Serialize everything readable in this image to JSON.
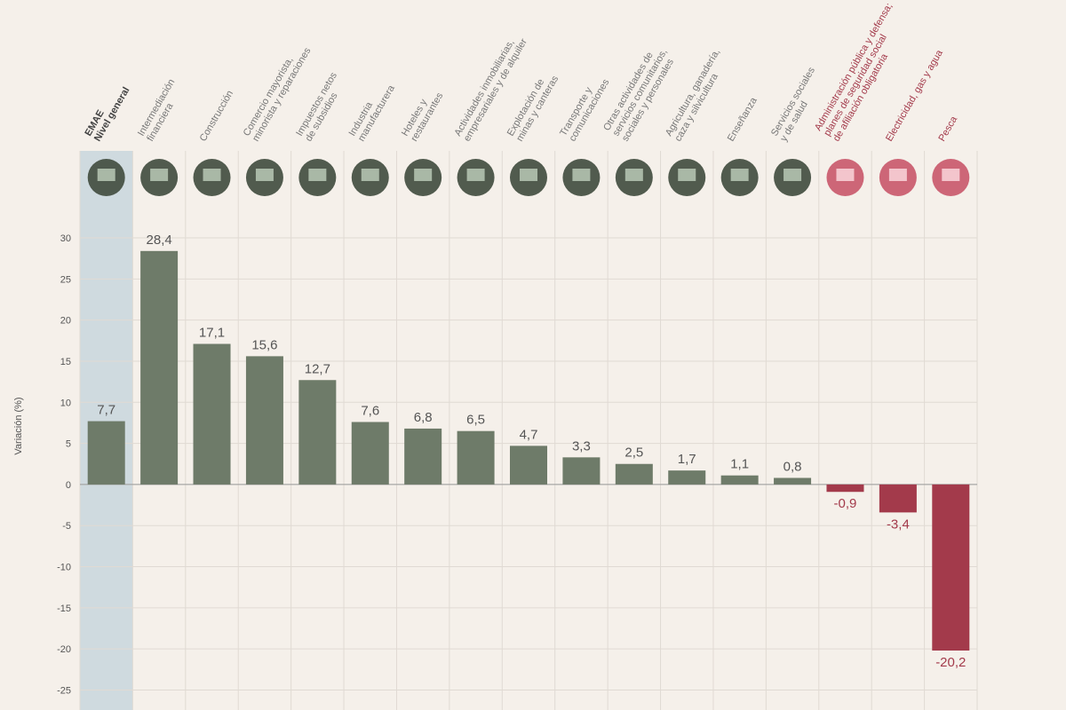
{
  "chart_data": {
    "type": "bar",
    "y_label": "Variación (%)",
    "categories": [
      [
        "EMAE",
        "Nivel general"
      ],
      [
        "Intermediación",
        "financiera"
      ],
      [
        "Construcción"
      ],
      [
        "Comercio mayorista,",
        "minorista y reparaciones"
      ],
      [
        "Impuestos netos",
        "de subsidios"
      ],
      [
        "Industria",
        "manufacturera"
      ],
      [
        "Hoteles y",
        "restaurantes"
      ],
      [
        "Actividades inmobiliarias,",
        "empresariales y de alquiler"
      ],
      [
        "Explotación de",
        "minas y canteras"
      ],
      [
        "Transporte y",
        "comunicaciones"
      ],
      [
        "Otras actividades de",
        "servicios comunitarios,",
        "sociales y personales"
      ],
      [
        "Agricultura, ganadería,",
        "caza y silvicultura"
      ],
      [
        "Enseñanza"
      ],
      [
        "Servicios sociales",
        "y de salud"
      ],
      [
        "Administración pública y defensa;",
        "planes de seguridad social",
        "de afiliación obligatoria"
      ],
      [
        "Electricidad, gas y agua"
      ],
      [
        "Pesca"
      ]
    ],
    "values": [
      7.7,
      28.4,
      17.1,
      15.6,
      12.7,
      7.6,
      6.8,
      6.5,
      4.7,
      3.3,
      2.5,
      1.7,
      1.1,
      0.8,
      -0.9,
      -3.4,
      -20.2
    ],
    "value_labels": [
      "7,7",
      "28,4",
      "17,1",
      "15,6",
      "12,7",
      "7,6",
      "6,8",
      "6,5",
      "4,7",
      "3,3",
      "2,5",
      "1,7",
      "1,1",
      "0,8",
      "-0,9",
      "-3,4",
      "-20,2"
    ],
    "color": "#6e7b69",
    "negative_color": "#a33a4b",
    "highlight": 0,
    "highlight_color": "#cfdadf",
    "ylim": [
      -27,
      30
    ],
    "yticks": [
      -25,
      -20,
      -15,
      -10,
      -5,
      0,
      5,
      10,
      15,
      20,
      25,
      30
    ],
    "grid": true
  }
}
